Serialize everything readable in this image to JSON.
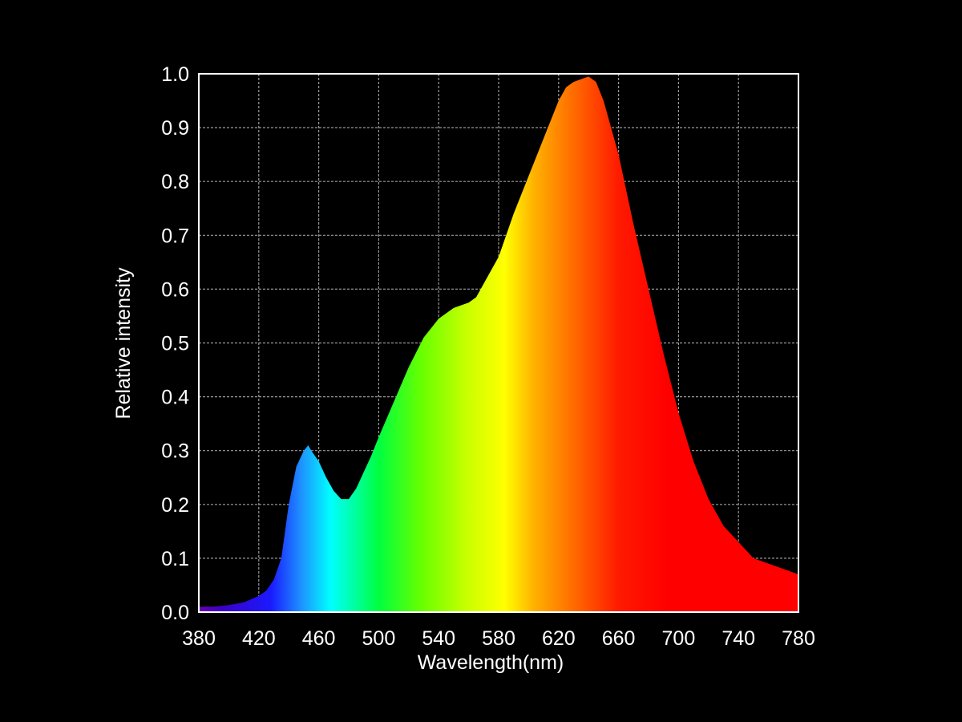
{
  "chart_data": {
    "type": "area",
    "title": "",
    "xlabel": "Wavelength(nm)",
    "ylabel": "Relative intensity",
    "xlim": [
      380,
      780
    ],
    "ylim": [
      0.0,
      1.0
    ],
    "x_ticks": [
      "380",
      "420",
      "460",
      "500",
      "540",
      "580",
      "620",
      "660",
      "700",
      "740",
      "780"
    ],
    "y_ticks": [
      "0.0",
      "0.1",
      "0.2",
      "0.3",
      "0.4",
      "0.5",
      "0.6",
      "0.7",
      "0.8",
      "0.9",
      "1.0"
    ],
    "grid": true,
    "legend": "none",
    "fill": "visible-spectrum gradient",
    "series": [
      {
        "x": [
          380,
          390,
          400,
          410,
          420,
          425,
          430,
          435,
          440,
          445,
          450,
          453,
          455,
          460,
          465,
          470,
          475,
          480,
          485,
          490,
          495,
          500,
          510,
          520,
          530,
          540,
          550,
          555,
          560,
          565,
          570,
          580,
          590,
          600,
          610,
          620,
          625,
          630,
          635,
          640,
          645,
          650,
          660,
          670,
          680,
          690,
          700,
          710,
          720,
          730,
          740,
          750,
          760,
          770,
          780
        ],
        "y": [
          0.01,
          0.01,
          0.013,
          0.018,
          0.03,
          0.04,
          0.06,
          0.1,
          0.2,
          0.27,
          0.3,
          0.31,
          0.3,
          0.28,
          0.25,
          0.225,
          0.21,
          0.21,
          0.23,
          0.26,
          0.29,
          0.325,
          0.39,
          0.455,
          0.51,
          0.545,
          0.565,
          0.57,
          0.575,
          0.585,
          0.61,
          0.66,
          0.74,
          0.81,
          0.88,
          0.95,
          0.975,
          0.985,
          0.99,
          0.995,
          0.985,
          0.95,
          0.85,
          0.72,
          0.6,
          0.48,
          0.37,
          0.28,
          0.21,
          0.16,
          0.13,
          0.1,
          0.09,
          0.08,
          0.07
        ]
      }
    ]
  }
}
